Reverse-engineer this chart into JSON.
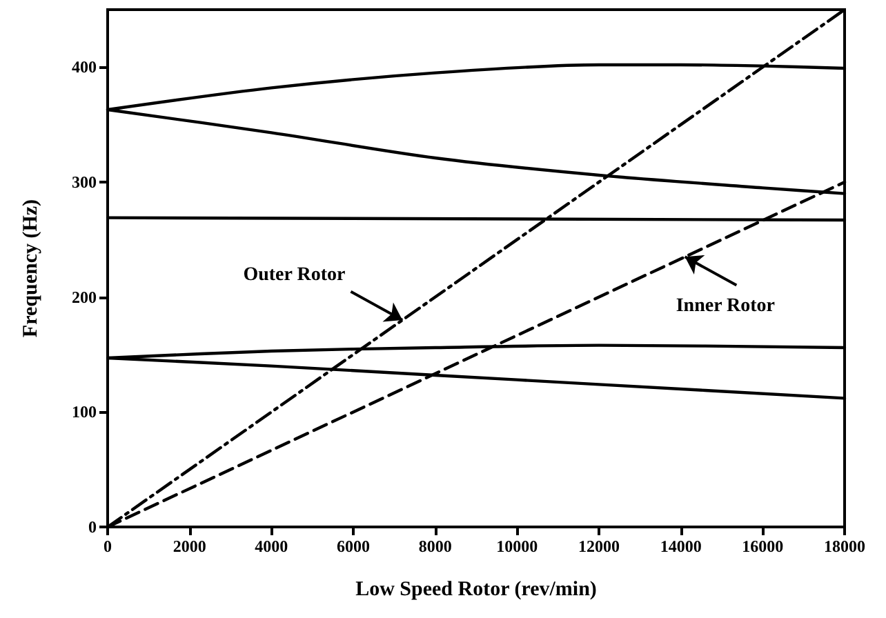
{
  "chart_data": {
    "type": "line",
    "xlabel": "Low Speed Rotor (rev/min)",
    "ylabel": "Frequency (Hz)",
    "xlim": [
      0,
      18000
    ],
    "xticks": [
      0,
      2000,
      4000,
      6000,
      8000,
      10000,
      12000,
      14000,
      16000,
      18000
    ],
    "ylim": [
      0,
      450
    ],
    "yticks": [
      0,
      100,
      200,
      300,
      400
    ],
    "grid": false,
    "marker": "none",
    "series": [
      {
        "color": "#000000",
        "line_style": "solid",
        "x": [
          0,
          4000,
          8000,
          12000,
          14000,
          16000,
          18000
        ],
        "values": [
          363,
          382,
          395,
          402,
          402,
          401,
          399
        ]
      },
      {
        "color": "#000000",
        "line_style": "solid",
        "x": [
          0,
          4000,
          8000,
          12000,
          16000,
          18000
        ],
        "values": [
          363,
          343,
          321,
          306,
          295,
          290
        ]
      },
      {
        "color": "#000000",
        "line_style": "solid",
        "x": [
          0,
          18000
        ],
        "values": [
          269,
          267
        ]
      },
      {
        "color": "#000000",
        "line_style": "solid",
        "x": [
          0,
          4000,
          8000,
          12000,
          18000
        ],
        "values": [
          147,
          153,
          156,
          158,
          156
        ]
      },
      {
        "color": "#000000",
        "line_style": "solid",
        "x": [
          0,
          4000,
          8000,
          12000,
          18000
        ],
        "values": [
          147,
          140,
          132,
          124,
          112
        ]
      },
      {
        "color": "#000000",
        "line_style": "dashdot",
        "x": [
          0,
          18000
        ],
        "values": [
          0,
          450
        ]
      },
      {
        "color": "#000000",
        "line_style": "dashed",
        "x": [
          0,
          18000
        ],
        "values": [
          0,
          300
        ]
      }
    ],
    "annotations": [
      {
        "text": "Outer Rotor",
        "x": 7200,
        "y": 180
      },
      {
        "text": "Inner Rotor",
        "x": 14100,
        "y": 235
      }
    ]
  }
}
